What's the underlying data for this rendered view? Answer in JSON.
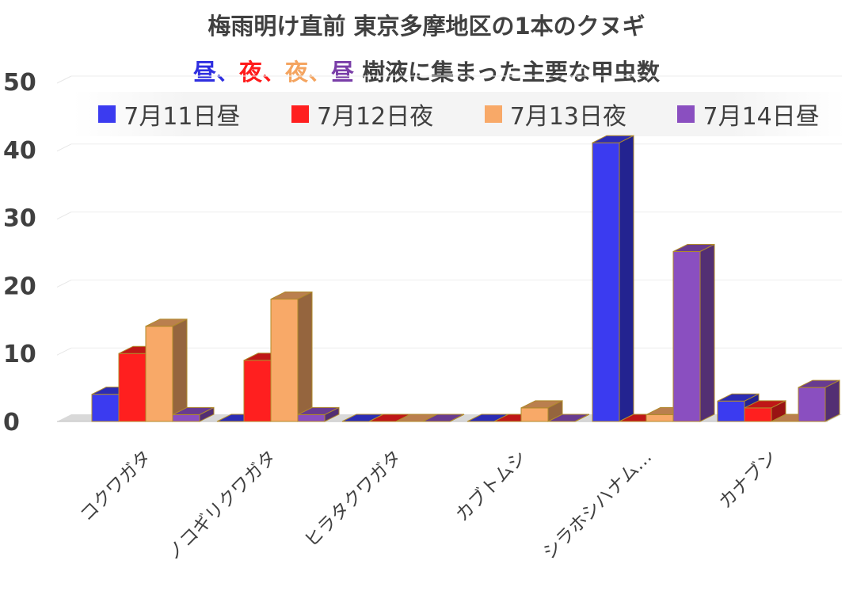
{
  "chart_data": {
    "type": "bar",
    "title": "梅雨明け直前 東京多摩地区の1本のクヌギ",
    "subtitle": [
      {
        "text": "昼",
        "color": "#2f2fe0"
      },
      {
        "text": "、",
        "color": "#2f2fe0"
      },
      {
        "text": "夜",
        "color": "#ff1a1a"
      },
      {
        "text": "、",
        "color": "#ff1a1a"
      },
      {
        "text": "夜",
        "color": "#f4a460"
      },
      {
        "text": "、",
        "color": "#f4a460"
      },
      {
        "text": "昼",
        "color": "#7a3ea8"
      },
      {
        "text": " 樹液に集まった主要な甲虫数",
        "color": "#404040"
      }
    ],
    "categories": [
      "コクワガタ",
      "ノコギリクワガタ",
      "ヒラタクワガタ",
      "カブトムシ",
      "シラホシハナム…",
      "カナブン"
    ],
    "series": [
      {
        "name": "7月11日昼",
        "color": "#3b3bf0",
        "values": [
          4,
          0,
          0,
          0,
          41,
          3
        ]
      },
      {
        "name": "7月12日夜",
        "color": "#ff1f1f",
        "values": [
          10,
          9,
          0,
          0,
          0,
          2
        ]
      },
      {
        "name": "7月13日夜",
        "color": "#f8a968",
        "values": [
          14,
          18,
          0,
          2,
          1,
          0
        ]
      },
      {
        "name": "7月14日昼",
        "color": "#8a4fc0",
        "values": [
          1,
          1,
          0,
          0,
          25,
          5
        ]
      }
    ],
    "yticks": [
      0,
      10,
      20,
      30,
      40,
      50
    ],
    "ylim": [
      0,
      50
    ],
    "grid": true,
    "legend_position": "top",
    "xlabel": "",
    "ylabel": ""
  }
}
